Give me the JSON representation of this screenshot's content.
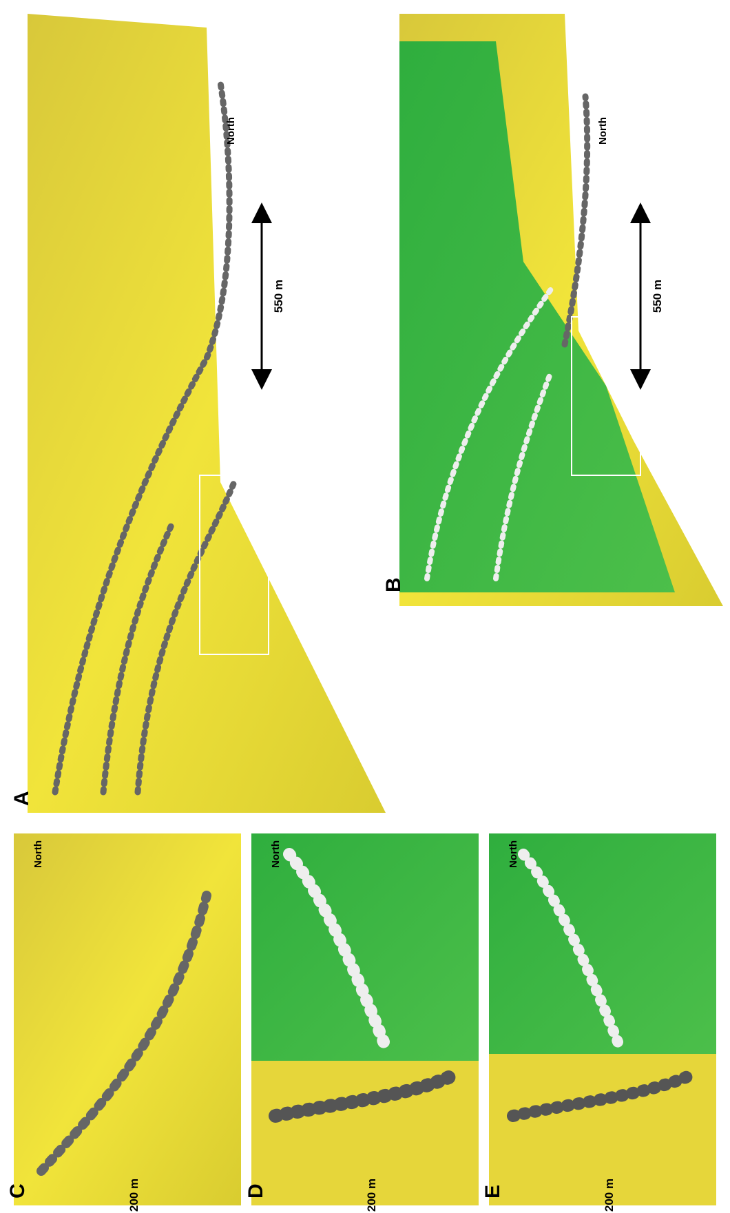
{
  "panels": [
    {
      "label": "A",
      "north": "North",
      "scale": "550 m"
    },
    {
      "label": "B",
      "north": "North",
      "scale": "550 m"
    },
    {
      "label": "C",
      "north": "North",
      "scale": "200 m"
    },
    {
      "label": "D",
      "north": "North",
      "scale": "200 m"
    },
    {
      "label": "E",
      "north": "North",
      "scale": "200 m"
    }
  ]
}
